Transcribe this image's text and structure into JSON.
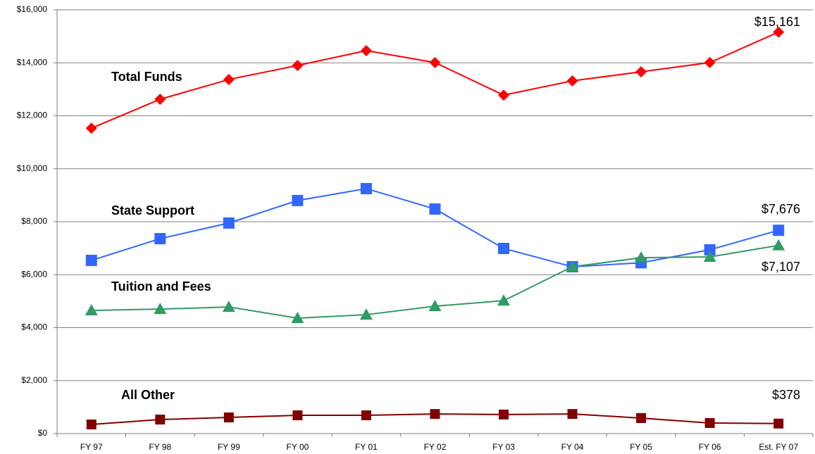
{
  "chart_data": {
    "type": "line",
    "categories": [
      "FY 97",
      "FY 98",
      "FY 99",
      "FY 00",
      "FY 01",
      "FY 02",
      "FY 03",
      "FY 04",
      "FY 05",
      "FY 06",
      "Est. FY 07"
    ],
    "series": [
      {
        "name": "Total Funds",
        "color": "#ff0000",
        "marker": "diamond",
        "values": [
          11530,
          12625,
          13370,
          13900,
          14460,
          14010,
          12780,
          13320,
          13660,
          14010,
          15161
        ],
        "value_labels": [
          null,
          null,
          null,
          null,
          null,
          null,
          null,
          null,
          null,
          null,
          "$15,161"
        ]
      },
      {
        "name": "State Support",
        "color": "#3366ff",
        "marker": "square",
        "values": [
          6540,
          7360,
          7950,
          8800,
          9250,
          8480,
          6990,
          6300,
          6450,
          6940,
          7676
        ],
        "value_labels": [
          null,
          null,
          null,
          null,
          null,
          null,
          null,
          null,
          null,
          null,
          "$7,676"
        ]
      },
      {
        "name": "Tuition and Fees",
        "color": "#339966",
        "marker": "triangle",
        "values": [
          4650,
          4700,
          4780,
          4360,
          4490,
          4810,
          5020,
          6300,
          6640,
          6670,
          7107
        ],
        "value_labels": [
          null,
          null,
          null,
          null,
          null,
          null,
          null,
          null,
          null,
          null,
          "$7,107"
        ]
      },
      {
        "name": "All Other",
        "color": "#800000",
        "marker": "square",
        "values": [
          345,
          530,
          610,
          690,
          690,
          740,
          720,
          740,
          585,
          400,
          378
        ],
        "value_labels": [
          null,
          null,
          null,
          null,
          null,
          null,
          null,
          null,
          null,
          null,
          "$378"
        ]
      }
    ],
    "ylim": [
      0,
      16000
    ],
    "yticks": [
      {
        "value": 0,
        "label": "$0"
      },
      {
        "value": 2000,
        "label": "$2,000"
      },
      {
        "value": 4000,
        "label": "$4,000"
      },
      {
        "value": 6000,
        "label": "$6,000"
      },
      {
        "value": 8000,
        "label": "$8,000"
      },
      {
        "value": 10000,
        "label": "$10,000"
      },
      {
        "value": 12000,
        "label": "$12,000"
      },
      {
        "value": 14000,
        "label": "$14,000"
      },
      {
        "value": 16000,
        "label": "$16,000"
      }
    ],
    "grid": true
  }
}
